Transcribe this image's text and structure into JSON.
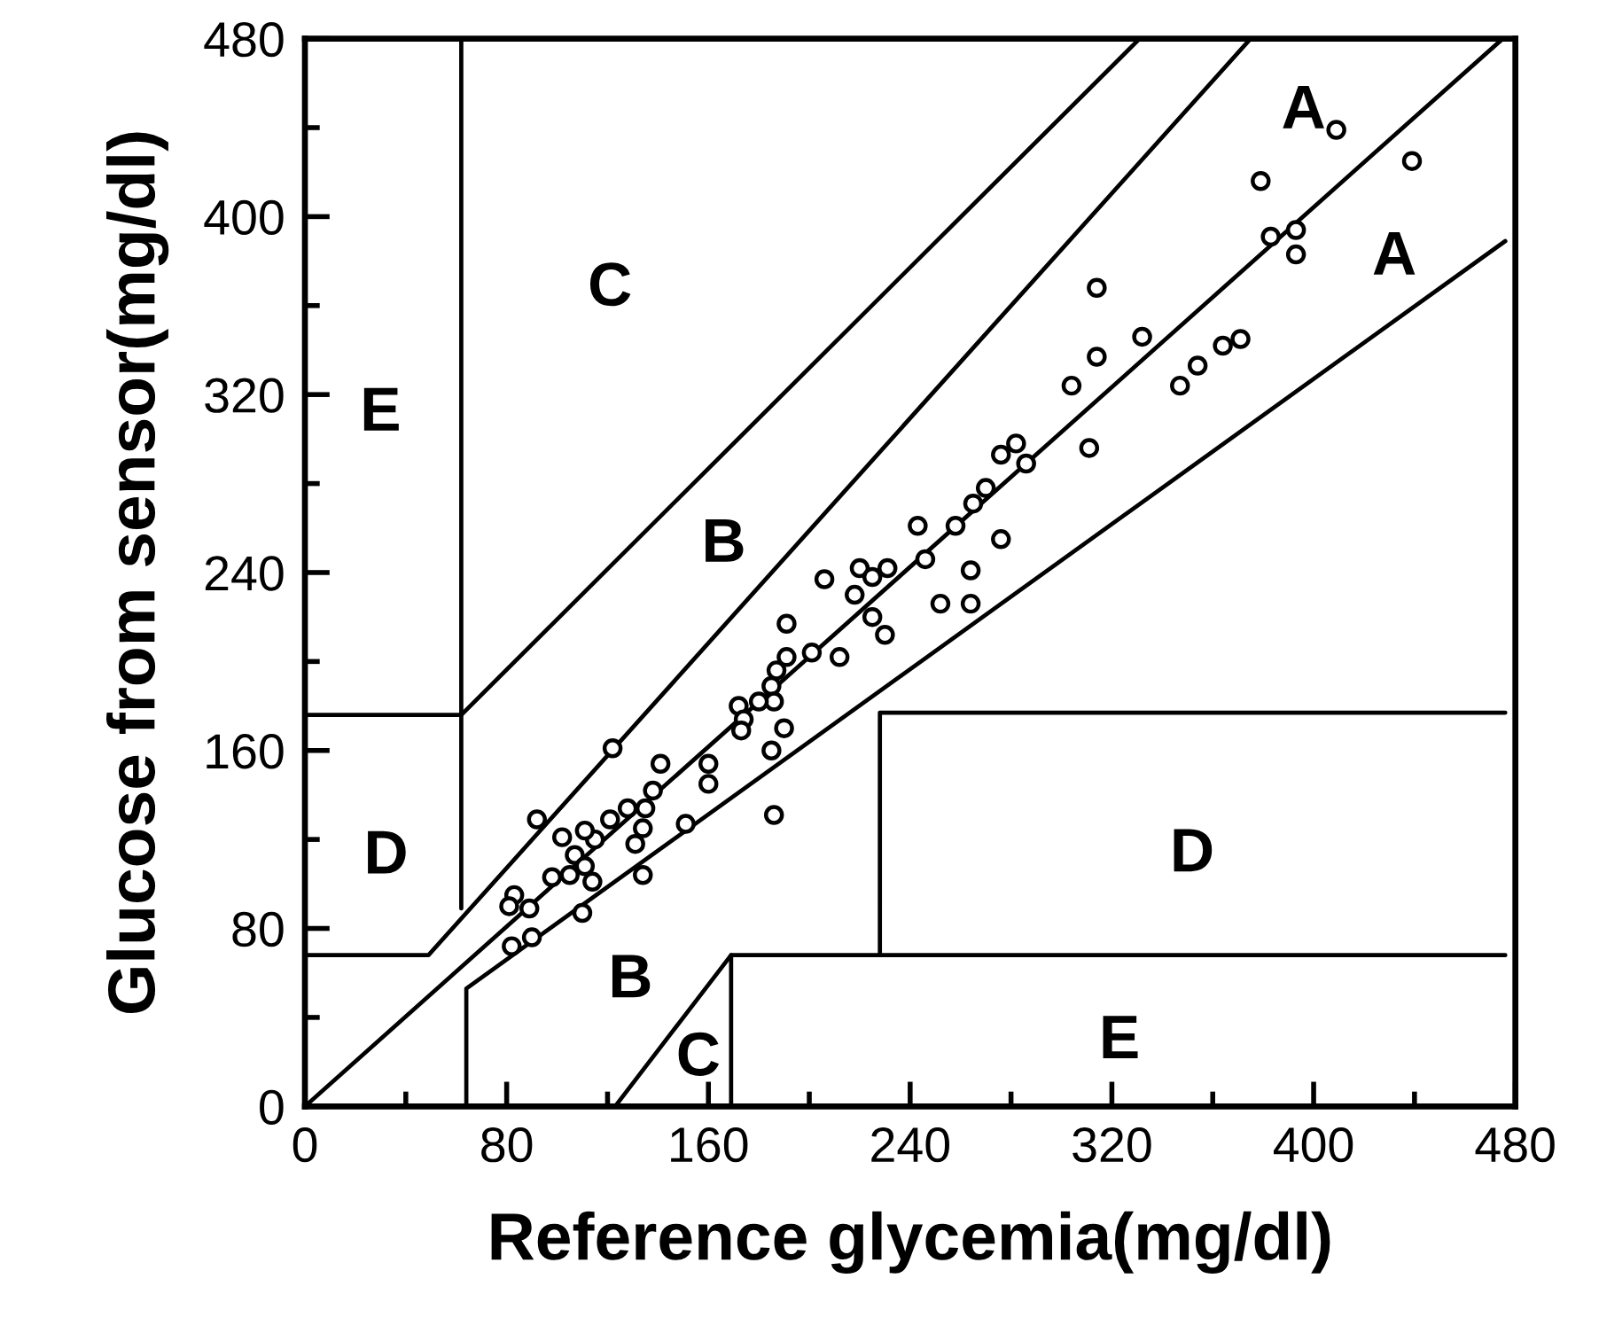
{
  "chart_data": {
    "type": "scatter",
    "xlabel": "Reference glycemia(mg/dl)",
    "ylabel": "Glucose from sensor(mg/dl)",
    "xlim": [
      0,
      480
    ],
    "ylim": [
      0,
      480
    ],
    "xticks": [
      0,
      {
        "value": 40,
        "label": null
      },
      80,
      {
        "value": 120,
        "label": null
      },
      160,
      {
        "value": 200,
        "label": null
      },
      240,
      {
        "value": 280,
        "label": null
      },
      320,
      {
        "value": 360,
        "label": null
      },
      400,
      {
        "value": 440,
        "label": null
      },
      480
    ],
    "yticks": [
      0,
      {
        "value": 40,
        "label": null
      },
      80,
      {
        "value": 120,
        "label": null
      },
      160,
      {
        "value": 200,
        "label": null
      },
      240,
      {
        "value": 280,
        "label": null
      },
      320,
      {
        "value": 360,
        "label": null
      },
      400,
      {
        "value": 440,
        "label": null
      },
      480
    ],
    "series": [
      {
        "marker": "circle",
        "color": "#000000",
        "x": [
          409,
          379,
          439,
          383,
          393,
          393,
          314,
          314,
          304,
          332,
          347,
          354,
          364,
          371,
          311,
          276,
          282,
          286,
          270,
          265,
          243,
          258,
          246,
          276,
          264,
          252,
          264,
          206,
          220,
          225,
          231,
          218,
          225,
          230,
          191,
          191,
          201,
          212,
          187,
          185,
          186,
          180,
          172,
          174,
          173,
          190,
          185,
          186,
          160,
          160,
          151,
          141,
          138,
          135,
          122,
          121,
          134,
          128,
          131,
          134,
          115,
          111,
          102,
          107,
          111,
          105,
          114,
          110,
          98,
          92,
          83,
          81,
          89,
          82,
          90
        ],
        "values": [
          439,
          416,
          425,
          391,
          394,
          383,
          368,
          337,
          324,
          346,
          324,
          333,
          342,
          345,
          296,
          293,
          298,
          289,
          278,
          271,
          261,
          261,
          246,
          255,
          241,
          226,
          226,
          237,
          242,
          238,
          242,
          230,
          220,
          212,
          217,
          202,
          204,
          202,
          196,
          189,
          182,
          182,
          180,
          174,
          169,
          170,
          160,
          131,
          154,
          145,
          127,
          154,
          142,
          134,
          161,
          129,
          125,
          134,
          118,
          104,
          120,
          124,
          121,
          113,
          108,
          104,
          101,
          87,
          103,
          129,
          95,
          90,
          89,
          72,
          76
        ]
      },
      {
        "type": "line",
        "color": "#000000",
        "x": [
          62,
          62
        ],
        "values": [
          89,
          480
        ]
      },
      {
        "type": "line",
        "color": "#000000",
        "x": [
          0,
          62
        ],
        "values": [
          176,
          176
        ]
      },
      {
        "type": "line",
        "color": "#000000",
        "x": [
          0,
          49,
          375
        ],
        "values": [
          68,
          68,
          480
        ]
      },
      {
        "type": "line",
        "color": "#000000",
        "x": [
          62,
          331
        ],
        "values": [
          176,
          480
        ]
      },
      {
        "type": "line",
        "color": "#000000",
        "x": [
          0,
          475
        ],
        "values": [
          0,
          480
        ]
      },
      {
        "type": "line",
        "color": "#000000",
        "x": [
          64,
          64,
          476
        ],
        "values": [
          0,
          53,
          389
        ]
      },
      {
        "type": "line",
        "color": "#000000",
        "x": [
          123,
          169,
          476
        ],
        "values": [
          0,
          68,
          68
        ]
      },
      {
        "type": "line",
        "color": "#000000",
        "x": [
          169,
          169
        ],
        "values": [
          0,
          68
        ]
      },
      {
        "type": "line",
        "color": "#000000",
        "x": [
          228,
          228,
          476
        ],
        "values": [
          68,
          177,
          177
        ]
      }
    ],
    "annotations": [
      "E",
      "C",
      "B",
      "A",
      "A",
      "D",
      "D",
      "B",
      "C",
      "E"
    ]
  }
}
